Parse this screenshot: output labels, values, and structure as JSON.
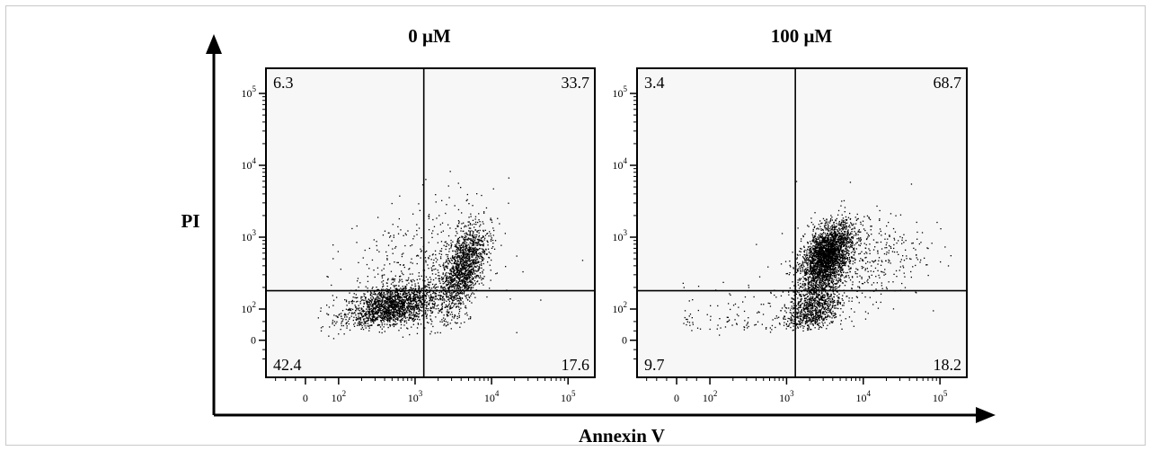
{
  "figure": {
    "xlabel": "Annexin V",
    "ylabel": "PI",
    "dot_color": "#000000",
    "plot_bg": "#f7f7f7",
    "axis_color": "#000000"
  },
  "chart_data": [
    {
      "type": "scatter",
      "title": "0  μM",
      "xlabel": "Annexin V",
      "ylabel": "PI",
      "x_scale": "biexponential",
      "y_scale": "biexponential",
      "x_ticks": [
        {
          "value": 0,
          "label": "0",
          "sup": ""
        },
        {
          "value": 100,
          "label": "10",
          "sup": "2"
        },
        {
          "value": 1000,
          "label": "10",
          "sup": "3"
        },
        {
          "value": 10000,
          "label": "10",
          "sup": "4"
        },
        {
          "value": 100000,
          "label": "10",
          "sup": "5"
        }
      ],
      "y_ticks": [
        {
          "value": 0,
          "label": "0",
          "sup": ""
        },
        {
          "value": 100,
          "label": "10",
          "sup": "2"
        },
        {
          "value": 1000,
          "label": "10",
          "sup": "3"
        },
        {
          "value": 10000,
          "label": "10",
          "sup": "4"
        },
        {
          "value": 100000,
          "label": "10",
          "sup": "5"
        }
      ],
      "gate": {
        "x": 1300,
        "y": 180
      },
      "quadrants": {
        "top_left": "6.3",
        "top_right": "33.7",
        "bottom_left": "42.4",
        "bottom_right": "17.6"
      },
      "clusters": [
        {
          "cx": 500,
          "cy": 110,
          "n": 1700,
          "sx": 0.3,
          "sy": 0.15,
          "rho": 0.35
        },
        {
          "cx": 4200,
          "cy": 380,
          "n": 1400,
          "sx": 0.15,
          "sy": 0.32,
          "rho": 0.55
        },
        {
          "cx": 1100,
          "cy": 300,
          "n": 500,
          "sx": 0.5,
          "sy": 0.5,
          "rho": 0.3
        }
      ]
    },
    {
      "type": "scatter",
      "title": "100 μM",
      "xlabel": "Annexin V",
      "ylabel": "PI",
      "x_scale": "biexponential",
      "y_scale": "biexponential",
      "x_ticks": [
        {
          "value": 0,
          "label": "0",
          "sup": ""
        },
        {
          "value": 100,
          "label": "10",
          "sup": "2"
        },
        {
          "value": 1000,
          "label": "10",
          "sup": "3"
        },
        {
          "value": 10000,
          "label": "10",
          "sup": "4"
        },
        {
          "value": 100000,
          "label": "10",
          "sup": "5"
        }
      ],
      "y_ticks": [
        {
          "value": 0,
          "label": "0",
          "sup": ""
        },
        {
          "value": 100,
          "label": "10",
          "sup": "2"
        },
        {
          "value": 1000,
          "label": "10",
          "sup": "3"
        },
        {
          "value": 10000,
          "label": "10",
          "sup": "4"
        },
        {
          "value": 100000,
          "label": "10",
          "sup": "5"
        }
      ],
      "gate": {
        "x": 1300,
        "y": 180
      },
      "quadrants": {
        "top_left": "3.4",
        "top_right": "68.7",
        "bottom_left": "9.7",
        "bottom_right": "18.2"
      },
      "clusters": [
        {
          "cx": 3300,
          "cy": 550,
          "n": 2600,
          "sx": 0.16,
          "sy": 0.22,
          "rho": 0.45
        },
        {
          "cx": 2300,
          "cy": 110,
          "n": 900,
          "sx": 0.17,
          "sy": 0.2,
          "rho": 0.3
        },
        {
          "cx": 9000,
          "cy": 500,
          "n": 450,
          "sx": 0.42,
          "sy": 0.35,
          "rho": 0.2
        },
        {
          "cx": 250,
          "cy": 80,
          "n": 130,
          "sx": 0.55,
          "sy": 0.28,
          "rho": 0.2
        }
      ]
    }
  ]
}
